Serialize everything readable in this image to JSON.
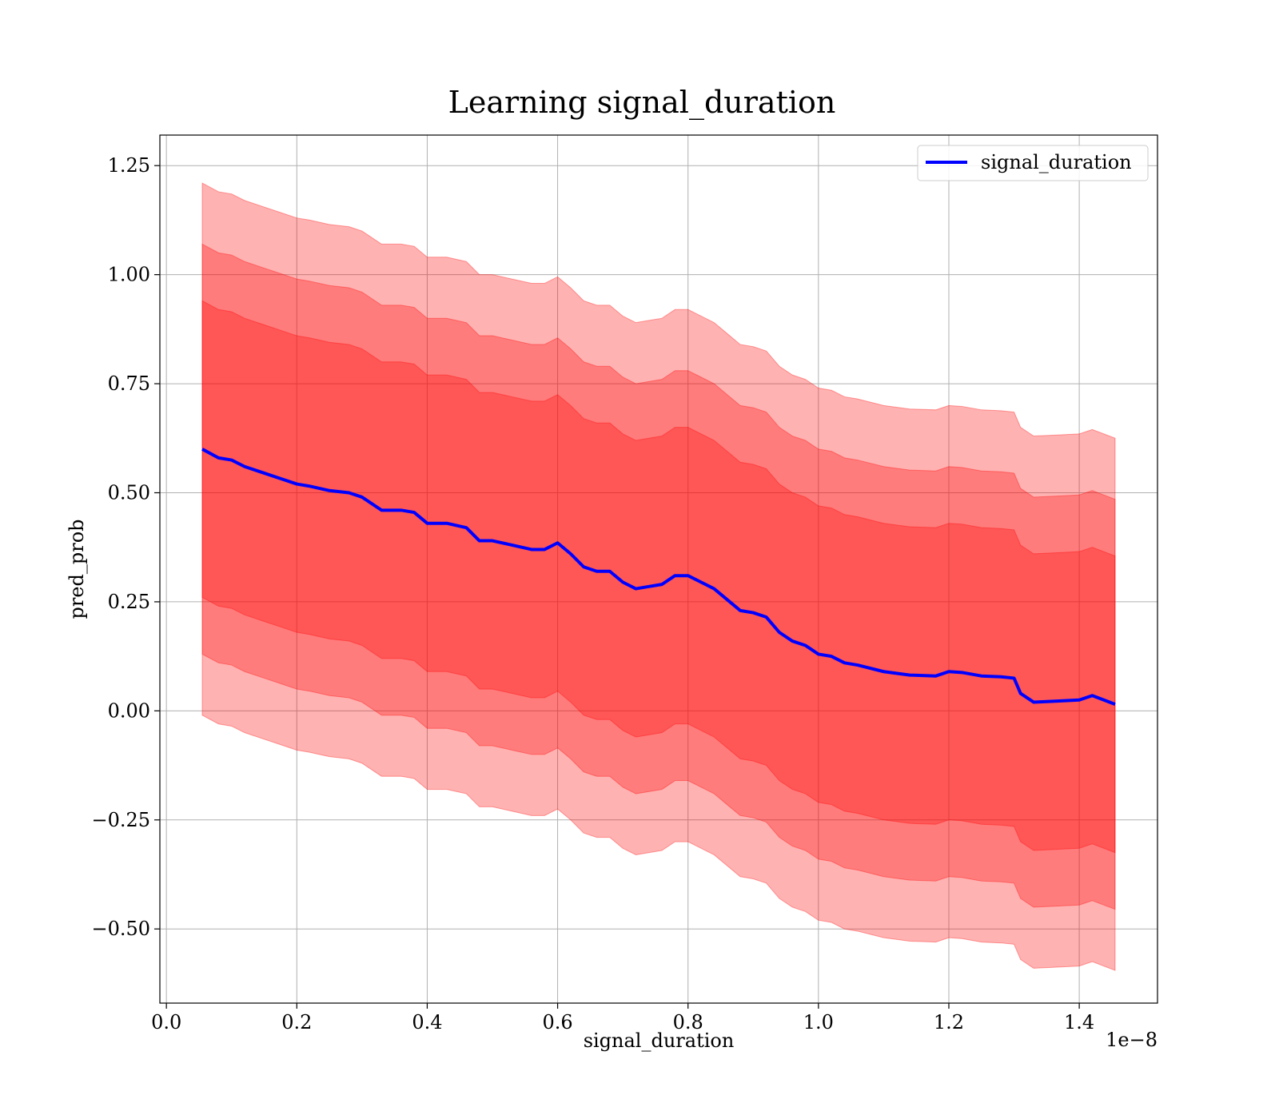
{
  "chart_data": {
    "type": "line",
    "title": "Learning signal_duration",
    "xlabel": "signal_duration",
    "ylabel": "pred_prob",
    "x_offset_label": "1e−8",
    "xlim": [
      -0.01,
      1.52
    ],
    "ylim": [
      -0.67,
      1.32
    ],
    "x_ticks": [
      0.0,
      0.2,
      0.4,
      0.6,
      0.8,
      1.0,
      1.2,
      1.4
    ],
    "x_tick_labels": [
      "0.0",
      "0.2",
      "0.4",
      "0.6",
      "0.8",
      "1.0",
      "1.2",
      "1.4"
    ],
    "y_ticks": [
      -0.5,
      -0.25,
      0.0,
      0.25,
      0.5,
      0.75,
      1.0,
      1.25
    ],
    "y_tick_labels": [
      "−0.50",
      "−0.25",
      "0.00",
      "0.25",
      "0.50",
      "0.75",
      "1.00",
      "1.25"
    ],
    "grid": true,
    "legend_position": "top-right",
    "colors": {
      "line": "#0000ff",
      "band": "#ff0000",
      "grid": "#b0b0b0"
    },
    "series": [
      {
        "name": "signal_duration",
        "x": [
          0.055,
          0.08,
          0.1,
          0.12,
          0.15,
          0.18,
          0.2,
          0.22,
          0.25,
          0.28,
          0.3,
          0.33,
          0.36,
          0.38,
          0.4,
          0.43,
          0.46,
          0.48,
          0.5,
          0.53,
          0.56,
          0.58,
          0.6,
          0.62,
          0.64,
          0.66,
          0.68,
          0.7,
          0.72,
          0.74,
          0.76,
          0.78,
          0.8,
          0.82,
          0.84,
          0.86,
          0.88,
          0.9,
          0.92,
          0.94,
          0.96,
          0.98,
          1.0,
          1.02,
          1.04,
          1.06,
          1.1,
          1.14,
          1.18,
          1.2,
          1.22,
          1.25,
          1.28,
          1.3,
          1.31,
          1.33,
          1.36,
          1.4,
          1.42,
          1.455
        ],
        "y": [
          0.6,
          0.58,
          0.575,
          0.56,
          0.545,
          0.53,
          0.52,
          0.515,
          0.505,
          0.5,
          0.49,
          0.46,
          0.46,
          0.455,
          0.43,
          0.43,
          0.42,
          0.39,
          0.39,
          0.38,
          0.37,
          0.37,
          0.385,
          0.36,
          0.33,
          0.32,
          0.32,
          0.295,
          0.28,
          0.285,
          0.29,
          0.31,
          0.31,
          0.295,
          0.28,
          0.255,
          0.23,
          0.225,
          0.215,
          0.18,
          0.16,
          0.15,
          0.13,
          0.125,
          0.11,
          0.105,
          0.09,
          0.082,
          0.08,
          0.09,
          0.088,
          0.08,
          0.078,
          0.075,
          0.04,
          0.02,
          0.022,
          0.025,
          0.035,
          0.015
        ],
        "band_half_widths": [
          0.61,
          0.47,
          0.34
        ]
      }
    ]
  }
}
